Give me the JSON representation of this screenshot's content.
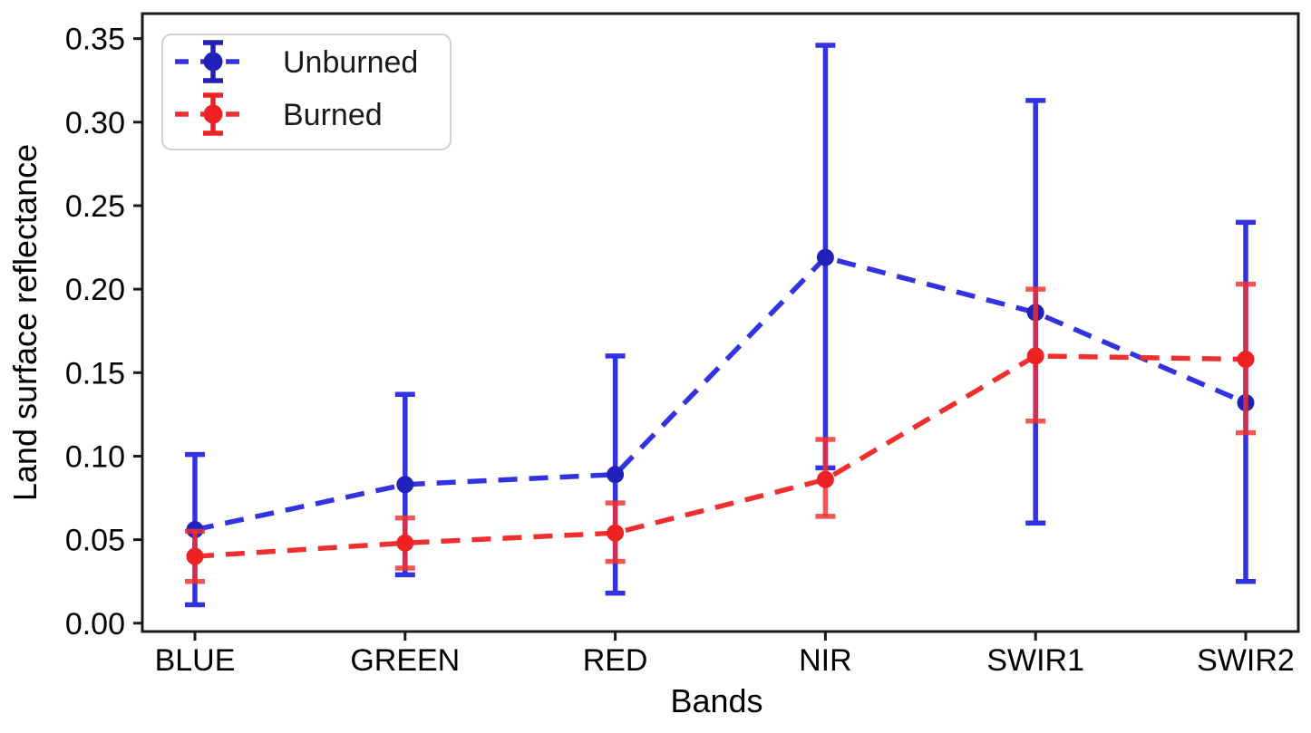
{
  "figure": {
    "background": "#ffffff"
  },
  "chart_data": {
    "type": "line",
    "subtype": "errorbar",
    "title": "",
    "xlabel": "Bands",
    "ylabel": "Land surface reflectance",
    "categories": [
      "BLUE",
      "GREEN",
      "RED",
      "NIR",
      "SWIR1",
      "SWIR2"
    ],
    "series": [
      {
        "name": "Unburned",
        "line_color": "#3232e0",
        "marker_color": "#2121b8",
        "bar_opacity": 1.0,
        "values": [
          0.056,
          0.083,
          0.089,
          0.219,
          0.186,
          0.132
        ],
        "err_lo": [
          0.011,
          0.029,
          0.018,
          0.093,
          0.06,
          0.025
        ],
        "err_hi": [
          0.101,
          0.137,
          0.16,
          0.346,
          0.313,
          0.24
        ]
      },
      {
        "name": "Burned",
        "line_color": "#ef2f2f",
        "marker_color": "#ee2222",
        "bar_opacity": 0.82,
        "values": [
          0.04,
          0.048,
          0.054,
          0.086,
          0.16,
          0.158
        ],
        "err_lo": [
          0.025,
          0.033,
          0.037,
          0.064,
          0.121,
          0.114
        ],
        "err_hi": [
          0.055,
          0.063,
          0.072,
          0.11,
          0.2,
          0.203
        ]
      }
    ],
    "line_style": "dashed",
    "marker": "circle",
    "yticks": [
      0.0,
      0.05,
      0.1,
      0.15,
      0.2,
      0.25,
      0.3,
      0.35
    ],
    "ylim": [
      -0.005,
      0.365
    ],
    "grid": false,
    "legend": {
      "position": "upper left",
      "entries": [
        "Unburned",
        "Burned"
      ]
    },
    "axis_color": "#1a1a1a",
    "text_color": "#000000"
  }
}
